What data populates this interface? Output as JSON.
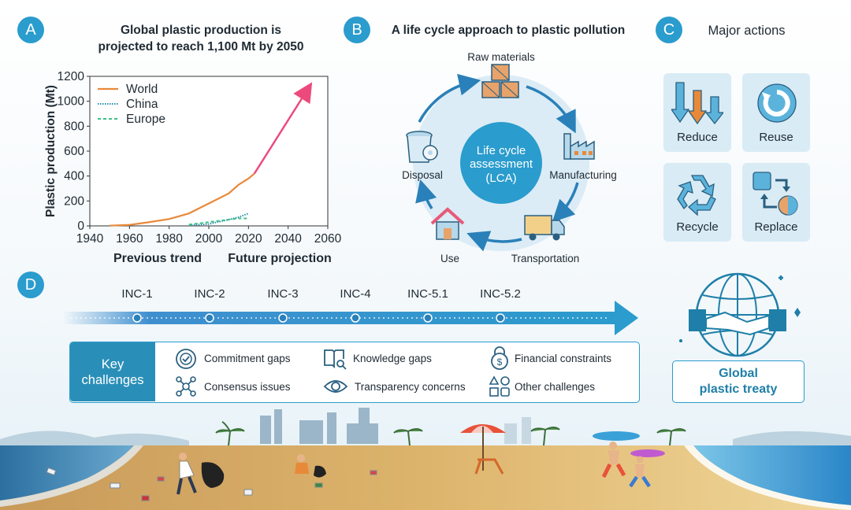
{
  "panels": {
    "a": {
      "letter": "A",
      "title_line1": "Global plastic production is",
      "title_line2": "projected to reach 1,100 Mt by 2050",
      "caption_left": "Previous trend",
      "caption_right": "Future projection"
    },
    "b": {
      "letter": "B",
      "title": "A life cycle approach  to plastic pollution",
      "center_line1": "Life cycle",
      "center_line2": "assessment",
      "center_line3": "(LCA)",
      "stages": {
        "raw": "Raw materials",
        "manufacturing": "Manufacturing",
        "transportation": "Transportation",
        "use": "Use",
        "disposal": "Disposal"
      }
    },
    "c": {
      "letter": "C",
      "title": "Major actions",
      "actions": [
        "Reduce",
        "Reuse",
        "Recycle",
        "Replace"
      ]
    },
    "d": {
      "letter": "D",
      "milestones": [
        "INC-1",
        "INC-2",
        "INC-3",
        "INC-4",
        "INC-5.1",
        "INC-5.2"
      ],
      "key_line1": "Key",
      "key_line2": "challenges",
      "challenges": [
        "Commitment gaps",
        "Knowledge gaps",
        "Financial constraints",
        "Consensus issues",
        "Transparency concerns",
        "Other challenges"
      ],
      "treaty_line1": "Global",
      "treaty_line2": "plastic treaty"
    }
  },
  "colors": {
    "accent": "#2a9ccd",
    "world": "#e8893a",
    "china": "#2a8fa8",
    "europe": "#3dbf8a",
    "projection": "#ec4a7d"
  },
  "chart_data": {
    "type": "line",
    "title": "",
    "xlabel": "",
    "ylabel": "Plastic production (Mt)",
    "xlim": [
      1940,
      2060
    ],
    "ylim": [
      0,
      1200
    ],
    "xticks": [
      "1940",
      "1960",
      "1980",
      "2000",
      "2020",
      "2040",
      "2060"
    ],
    "yticks": [
      "0",
      "200",
      "400",
      "600",
      "800",
      "1000",
      "1200"
    ],
    "legend": "top-left",
    "series": [
      {
        "name": "World",
        "x": [
          1950,
          1960,
          1970,
          1980,
          1990,
          2000,
          2010,
          2015,
          2020,
          2023
        ],
        "y": [
          2,
          8,
          30,
          55,
          100,
          180,
          260,
          330,
          380,
          420
        ]
      },
      {
        "name": "China",
        "x": [
          1990,
          2000,
          2010,
          2015,
          2020
        ],
        "y": [
          5,
          15,
          50,
          70,
          100
        ]
      },
      {
        "name": "Europe",
        "x": [
          1990,
          2000,
          2010,
          2015,
          2020
        ],
        "y": [
          10,
          30,
          50,
          60,
          60
        ]
      }
    ],
    "projection": {
      "x": [
        2023,
        2050
      ],
      "y": [
        420,
        1100
      ]
    }
  }
}
